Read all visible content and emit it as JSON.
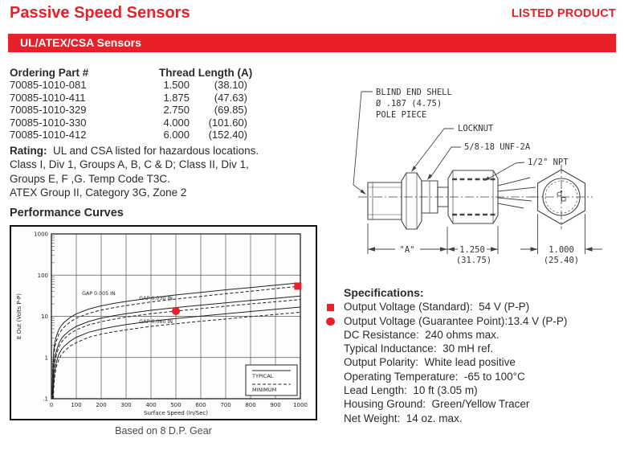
{
  "page": {
    "title": "Passive Speed Sensors",
    "listed_product": "LISTED PRODUCT",
    "section_bar": "UL/ATEX/CSA Sensors",
    "accent_red": "#e8202a"
  },
  "ordering_table": {
    "col1_header": "Ordering Part #",
    "col2_header": "Thread Length (A)",
    "rows": [
      {
        "part": "70085-1010-081",
        "in": "1.500",
        "mm": "(38.10)"
      },
      {
        "part": "70085-1010-411",
        "in": "1.875",
        "mm": "(47.63)"
      },
      {
        "part": "70085-1010-329",
        "in": "2.750",
        "mm": "(69.85)"
      },
      {
        "part": "70085-1010-330",
        "in": "4.000",
        "mm": "(101.60)"
      },
      {
        "part": "70085-1010-412",
        "in": "6.000",
        "mm": "(152.40)"
      }
    ]
  },
  "rating": {
    "label": "Rating:",
    "line1": "UL and CSA listed for hazardous locations.",
    "line2": "Class I, Div 1, Groups A, B, C & D; Class II, Div 1,",
    "line3": "Groups E, F ,G. Temp Code T3C.",
    "line4": "ATEX Group II, Category 3G, Zone 2"
  },
  "performance": {
    "heading": "Performance Curves",
    "caption": "Based on 8 D.P. Gear"
  },
  "chart_data": {
    "type": "line",
    "xlabel": "Surface Speed (In/Sec)",
    "ylabel": "E Out (Volts P-P)",
    "xlim": [
      0,
      1000
    ],
    "x_ticks": [
      0,
      100,
      200,
      300,
      400,
      500,
      600,
      700,
      800,
      900,
      1000
    ],
    "ylim": [
      0.1,
      1000
    ],
    "y_scale": "log",
    "y_ticks": [
      {
        "v": 1000,
        "label": "1000"
      },
      {
        "v": 100,
        "label": "100"
      },
      {
        "v": 10,
        "label": "10"
      },
      {
        "v": 1,
        "label": "1"
      },
      {
        "v": 0.1,
        "label": ".1"
      }
    ],
    "grid": true,
    "legend": {
      "position": "bottom-right",
      "entries": [
        {
          "label": "TYPICAL",
          "style": "solid"
        },
        {
          "label": "MINIMUM",
          "style": "dashed"
        }
      ]
    },
    "series": [
      {
        "name": "GAP 0.005 IN TYPICAL",
        "style": "solid",
        "points": [
          [
            3,
            0.12
          ],
          [
            6,
            0.7
          ],
          [
            10,
            1.6
          ],
          [
            15,
            2.5
          ],
          [
            20,
            3.3
          ],
          [
            30,
            4.8
          ],
          [
            40,
            6
          ],
          [
            50,
            7
          ],
          [
            75,
            9.4
          ],
          [
            100,
            11.5
          ],
          [
            150,
            15
          ],
          [
            200,
            18
          ],
          [
            250,
            20.5
          ],
          [
            300,
            23
          ],
          [
            400,
            28
          ],
          [
            500,
            33
          ],
          [
            600,
            38
          ],
          [
            700,
            44
          ],
          [
            800,
            50
          ],
          [
            900,
            57
          ],
          [
            1000,
            65
          ]
        ]
      },
      {
        "name": "GAP 0.005 IN MINIMUM",
        "style": "dashed",
        "points": [
          [
            3.5,
            0.1
          ],
          [
            6,
            0.5
          ],
          [
            10,
            1.2
          ],
          [
            15,
            1.9
          ],
          [
            20,
            2.5
          ],
          [
            30,
            3.7
          ],
          [
            40,
            4.6
          ],
          [
            50,
            5.4
          ],
          [
            75,
            7.3
          ],
          [
            100,
            9
          ],
          [
            150,
            11.8
          ],
          [
            200,
            14.2
          ],
          [
            250,
            16.2
          ],
          [
            300,
            18.2
          ],
          [
            400,
            22.3
          ],
          [
            500,
            26.3
          ],
          [
            600,
            30.5
          ],
          [
            700,
            35.3
          ],
          [
            800,
            40.6
          ],
          [
            900,
            46.8
          ],
          [
            1000,
            54
          ]
        ]
      },
      {
        "name": "GAP 0.030 IN TYPICAL",
        "style": "solid",
        "points": [
          [
            5,
            0.12
          ],
          [
            8,
            0.45
          ],
          [
            10,
            0.65
          ],
          [
            15,
            1.05
          ],
          [
            20,
            1.45
          ],
          [
            30,
            2.2
          ],
          [
            40,
            2.85
          ],
          [
            50,
            3.4
          ],
          [
            75,
            4.6
          ],
          [
            100,
            5.7
          ],
          [
            150,
            7.5
          ],
          [
            200,
            9
          ],
          [
            250,
            10.3
          ],
          [
            300,
            11.6
          ],
          [
            400,
            14
          ],
          [
            500,
            16.3
          ],
          [
            600,
            18.7
          ],
          [
            700,
            21.3
          ],
          [
            800,
            24.2
          ],
          [
            900,
            27.4
          ],
          [
            1000,
            31
          ]
        ]
      },
      {
        "name": "GAP 0.030 IN MINIMUM",
        "style": "dashed",
        "points": [
          [
            5.5,
            0.1
          ],
          [
            8,
            0.36
          ],
          [
            10,
            0.52
          ],
          [
            15,
            0.85
          ],
          [
            20,
            1.18
          ],
          [
            30,
            1.8
          ],
          [
            40,
            2.33
          ],
          [
            50,
            2.8
          ],
          [
            75,
            3.8
          ],
          [
            100,
            4.7
          ],
          [
            150,
            6.2
          ],
          [
            200,
            7.4
          ],
          [
            250,
            8.5
          ],
          [
            300,
            9.6
          ],
          [
            400,
            11.6
          ],
          [
            500,
            13.4
          ],
          [
            600,
            15.4
          ],
          [
            700,
            17.6
          ],
          [
            800,
            20
          ],
          [
            900,
            22.6
          ],
          [
            1000,
            25.6
          ]
        ]
      },
      {
        "name": "GAP 0.060 IN TYPICAL",
        "style": "solid",
        "points": [
          [
            7,
            0.12
          ],
          [
            10,
            0.3
          ],
          [
            15,
            0.55
          ],
          [
            20,
            0.78
          ],
          [
            30,
            1.2
          ],
          [
            40,
            1.55
          ],
          [
            50,
            1.85
          ],
          [
            75,
            2.5
          ],
          [
            100,
            3.1
          ],
          [
            150,
            4.1
          ],
          [
            200,
            4.9
          ],
          [
            250,
            5.6
          ],
          [
            300,
            6.3
          ],
          [
            400,
            7.6
          ],
          [
            500,
            8.8
          ],
          [
            600,
            10.1
          ],
          [
            700,
            11.5
          ],
          [
            800,
            13.1
          ],
          [
            900,
            14.8
          ],
          [
            1000,
            16.8
          ]
        ]
      },
      {
        "name": "GAP 0.060 IN MINIMUM",
        "style": "dashed",
        "points": [
          [
            8,
            0.1
          ],
          [
            10,
            0.22
          ],
          [
            15,
            0.42
          ],
          [
            20,
            0.6
          ],
          [
            30,
            0.9
          ],
          [
            40,
            1.16
          ],
          [
            50,
            1.39
          ],
          [
            75,
            1.9
          ],
          [
            100,
            2.3
          ],
          [
            150,
            3.1
          ],
          [
            200,
            3.7
          ],
          [
            250,
            4.2
          ],
          [
            300,
            4.7
          ],
          [
            400,
            5.7
          ],
          [
            500,
            6.6
          ],
          [
            600,
            7.6
          ],
          [
            700,
            8.6
          ],
          [
            800,
            9.8
          ],
          [
            900,
            11.1
          ],
          [
            1000,
            12.6
          ]
        ]
      }
    ],
    "curve_labels": [
      {
        "text": "GAP 0.005 IN",
        "x": 190,
        "y": 33
      },
      {
        "text": "GAP 0.030 IN",
        "x": 420,
        "y": 25
      },
      {
        "text": "GAP 0.060 IN",
        "x": 420,
        "y": 6.9
      }
    ],
    "markers": [
      {
        "shape": "square",
        "x": 990,
        "y": 54,
        "color": "#e8202a",
        "meaning": "Output Voltage (Standard)"
      },
      {
        "shape": "circle",
        "x": 500,
        "y": 13.4,
        "color": "#e8202a",
        "meaning": "Output Voltage (Guarantee Point)"
      }
    ]
  },
  "drawing": {
    "labels": {
      "blind1": "BLIND END SHELL",
      "blind2": "Ø .187 (4.75)",
      "blind3": "POLE PIECE",
      "locknut": "LOCKNUT",
      "thread": "5/8-18 UNF-2A",
      "npt": "1/2\" NPT",
      "dim_a": "\"A\"",
      "dim_b_in": "1.250",
      "dim_b_mm": "(31.75)",
      "dim_c_in": "1.000",
      "dim_c_mm": "(25.40)"
    }
  },
  "specifications": {
    "heading": "Specifications:",
    "lines": [
      {
        "marker": "square",
        "text": "Output Voltage (Standard):  54 V (P-P)"
      },
      {
        "marker": "circle",
        "text": "Output Voltage (Guarantee Point):13.4 V (P-P)"
      },
      {
        "marker": null,
        "text": "DC Resistance:  240 ohms max."
      },
      {
        "marker": null,
        "text": "Typical Inductance:  30 mH ref."
      },
      {
        "marker": null,
        "text": "Output Polarity:  White lead positive"
      },
      {
        "marker": null,
        "text": "Operating Temperature:  -65 to 100°C"
      },
      {
        "marker": null,
        "text": "Lead Length:  10 ft (3.05 m)"
      },
      {
        "marker": null,
        "text": "Housing Ground:  Green/Yellow Tracer"
      },
      {
        "marker": null,
        "text": "Net Weight:  14 oz. max."
      }
    ]
  }
}
